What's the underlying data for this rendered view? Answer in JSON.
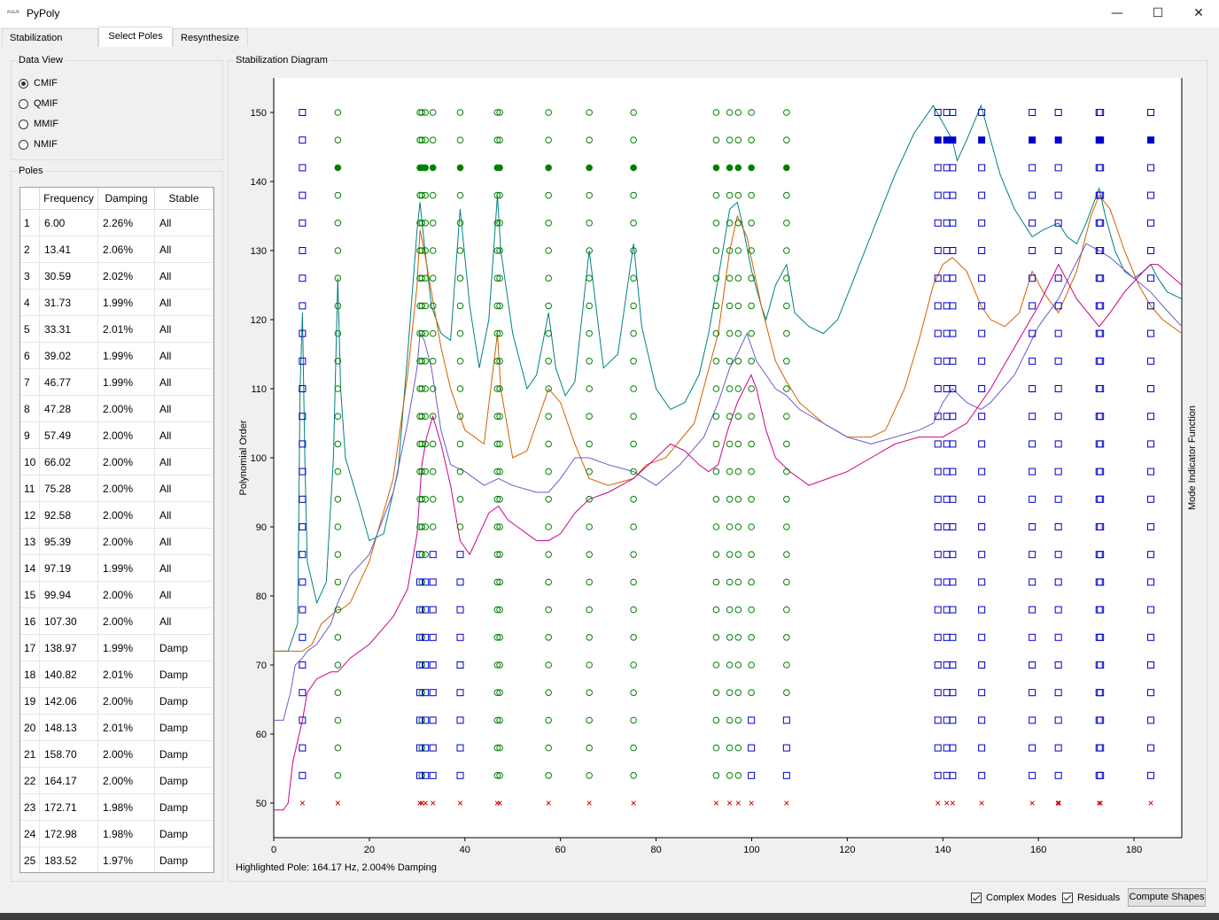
{
  "window": {
    "title": "PyPoly",
    "icon_text": "ʀᴜʟʀ"
  },
  "tabs": [
    {
      "label": "Stabilization Setup"
    },
    {
      "label": "Select Poles"
    },
    {
      "label": "Resynthesize"
    }
  ],
  "data_view": {
    "title": "Data View",
    "options": [
      {
        "label": "CMIF",
        "selected": true
      },
      {
        "label": "QMIF",
        "selected": false
      },
      {
        "label": "MMIF",
        "selected": false
      },
      {
        "label": "NMIF",
        "selected": false
      }
    ]
  },
  "poles": {
    "title": "Poles",
    "headers": [
      "Frequency",
      "Damping",
      "Stable"
    ],
    "rows": [
      [
        "1",
        "6.00",
        "2.26%",
        "All"
      ],
      [
        "2",
        "13.41",
        "2.06%",
        "All"
      ],
      [
        "3",
        "30.59",
        "2.02%",
        "All"
      ],
      [
        "4",
        "31.73",
        "1.99%",
        "All"
      ],
      [
        "5",
        "33.31",
        "2.01%",
        "All"
      ],
      [
        "6",
        "39.02",
        "1.99%",
        "All"
      ],
      [
        "7",
        "46.77",
        "1.99%",
        "All"
      ],
      [
        "8",
        "47.28",
        "2.00%",
        "All"
      ],
      [
        "9",
        "57.49",
        "2.00%",
        "All"
      ],
      [
        "10",
        "66.02",
        "2.00%",
        "All"
      ],
      [
        "11",
        "75.28",
        "2.00%",
        "All"
      ],
      [
        "12",
        "92.58",
        "2.00%",
        "All"
      ],
      [
        "13",
        "95.39",
        "2.00%",
        "All"
      ],
      [
        "14",
        "97.19",
        "1.99%",
        "All"
      ],
      [
        "15",
        "99.94",
        "2.00%",
        "All"
      ],
      [
        "16",
        "107.30",
        "2.00%",
        "All"
      ],
      [
        "17",
        "138.97",
        "1.99%",
        "Damp"
      ],
      [
        "18",
        "140.82",
        "2.01%",
        "Damp"
      ],
      [
        "19",
        "142.06",
        "2.00%",
        "Damp"
      ],
      [
        "20",
        "148.13",
        "2.01%",
        "Damp"
      ],
      [
        "21",
        "158.70",
        "2.00%",
        "Damp"
      ],
      [
        "22",
        "164.17",
        "2.00%",
        "Damp"
      ],
      [
        "23",
        "172.71",
        "1.98%",
        "Damp"
      ],
      [
        "24",
        "172.98",
        "1.98%",
        "Damp"
      ],
      [
        "25",
        "183.52",
        "1.97%",
        "Damp"
      ]
    ]
  },
  "stabilization": {
    "title": "Stabilization Diagram",
    "status": "Highlighted Pole: 164.17 Hz, 2.004% Damping"
  },
  "footer": {
    "complex_modes_label": "Complex Modes",
    "residuals_label": "Residuals",
    "compute_label": "Compute Shapes"
  },
  "chart_data": {
    "type": "scatter",
    "title": "Stabilization Diagram",
    "xlabel": "",
    "ylabel": "Polynomial Order",
    "y2label": "Mode Indicator Function",
    "xlim": [
      0,
      190
    ],
    "ylim": [
      45,
      155
    ],
    "xticks": [
      0,
      20,
      40,
      60,
      80,
      100,
      120,
      140,
      160,
      180
    ],
    "yticks": [
      50,
      60,
      70,
      80,
      90,
      100,
      110,
      120,
      130,
      140,
      150
    ],
    "orders": [
      50,
      54,
      58,
      62,
      66,
      70,
      74,
      78,
      82,
      86,
      90,
      94,
      98,
      102,
      106,
      110,
      114,
      118,
      122,
      126,
      130,
      134,
      138,
      142,
      146,
      150
    ],
    "selected_order": 142,
    "highlighted_frequency": 164.17,
    "colors": {
      "stable": "#008000",
      "freq_only": "#0000cc",
      "unstable": "#cc0000",
      "mif": [
        "#008080",
        "#d06000",
        "#6a5acd",
        "#cc0088"
      ]
    },
    "pole_columns": [
      {
        "f": 6.0,
        "green_from": 999,
        "blue": [
          54,
          58,
          62,
          66,
          70,
          74,
          78,
          82,
          86,
          90,
          94,
          98,
          102,
          106,
          110,
          114,
          118,
          122,
          126,
          130,
          134,
          138,
          142,
          146,
          150
        ]
      },
      {
        "f": 13.41,
        "green_from": 54
      },
      {
        "f": 30.59,
        "green_from": 90
      },
      {
        "f": 31.0,
        "green_from": 54
      },
      {
        "f": 31.73,
        "green_from": 86
      },
      {
        "f": 33.31,
        "green_from": 90
      },
      {
        "f": 39.02,
        "green_from": 90
      },
      {
        "f": 46.77,
        "green_from": 54
      },
      {
        "f": 47.28,
        "green_from": 54
      },
      {
        "f": 57.49,
        "green_from": 54
      },
      {
        "f": 66.02,
        "green_from": 54
      },
      {
        "f": 75.28,
        "green_from": 54
      },
      {
        "f": 92.58,
        "green_from": 54
      },
      {
        "f": 95.39,
        "green_from": 54
      },
      {
        "f": 97.19,
        "green_from": 54
      },
      {
        "f": 99.94,
        "green_from": 66
      },
      {
        "f": 107.3,
        "green_from": 66
      },
      {
        "f": 138.97,
        "green_from": 999
      },
      {
        "f": 140.82,
        "green_from": 999
      },
      {
        "f": 142.06,
        "green_from": 999
      },
      {
        "f": 148.13,
        "green_from": 999
      },
      {
        "f": 158.7,
        "green_from": 999
      },
      {
        "f": 164.17,
        "green_from": 999
      },
      {
        "f": 172.71,
        "green_from": 999
      },
      {
        "f": 172.98,
        "green_from": 999
      },
      {
        "f": 183.52,
        "green_from": 999
      }
    ],
    "series": [
      {
        "name": "",
        "x": [
          0,
          3,
          5,
          5.5,
          6,
          6.5,
          7,
          9,
          11,
          12.5,
          13.4,
          14,
          15,
          18,
          20,
          23,
          26,
          28,
          30,
          30.6,
          31.5,
          33,
          35,
          37,
          39,
          41,
          43,
          45,
          46.8,
          47.5,
          50,
          53,
          55,
          57.5,
          59,
          61,
          63,
          66,
          69,
          72,
          75.3,
          77,
          80,
          83,
          86,
          89,
          91,
          93,
          95.4,
          97,
          98,
          100,
          102,
          103,
          105,
          107.3,
          109,
          112,
          115,
          118,
          122,
          126,
          130,
          134,
          138,
          142,
          143,
          145,
          148,
          150,
          152,
          155,
          158.7,
          161,
          164.2,
          166,
          168,
          170,
          172.7,
          174,
          176,
          178,
          180,
          182,
          183.5,
          185,
          187,
          190
        ],
        "y": [
          72,
          72,
          76,
          110,
          121,
          100,
          85,
          79,
          82,
          100,
          126,
          110,
          100,
          93,
          88,
          89,
          98,
          115,
          133,
          137,
          131,
          122,
          118,
          117,
          136,
          122,
          113,
          120,
          138,
          130,
          118,
          110,
          112,
          121,
          113,
          109,
          111,
          130,
          113,
          115,
          131,
          119,
          110,
          107,
          108,
          112,
          118,
          126,
          136,
          137,
          134,
          127,
          122,
          120,
          125,
          128,
          121,
          119,
          118,
          120,
          127,
          134,
          141,
          147,
          151,
          146,
          143,
          146,
          151,
          146,
          141,
          136,
          132,
          133,
          134,
          132,
          131,
          134,
          139,
          135,
          130,
          127,
          126,
          127,
          128,
          126,
          124,
          123
        ]
      },
      {
        "name": "",
        "x": [
          0,
          3,
          6,
          8,
          10,
          13.4,
          14,
          16,
          20,
          25,
          28,
          30,
          30.6,
          31.5,
          33,
          35,
          37,
          40,
          44,
          46.8,
          47.5,
          50,
          53,
          57.5,
          60,
          63,
          66,
          70,
          75.3,
          78,
          82,
          88,
          93,
          95.4,
          97,
          99,
          102,
          105,
          107.3,
          110,
          115,
          120,
          125,
          128,
          132,
          135,
          138,
          140,
          142,
          145,
          148,
          150,
          153,
          156,
          158.7,
          161,
          164.2,
          168,
          171,
          172.7,
          175,
          178,
          181,
          183.5,
          186,
          190
        ],
        "y": [
          72,
          72,
          72,
          73,
          76,
          78,
          78,
          79,
          85,
          97,
          112,
          125,
          133,
          130,
          124,
          116,
          110,
          104,
          102,
          118,
          110,
          100,
          101,
          110,
          108,
          102,
          97,
          96,
          97,
          99,
          100,
          105,
          118,
          130,
          135,
          132,
          122,
          114,
          111,
          108,
          105,
          103,
          103,
          104,
          110,
          117,
          125,
          128,
          129,
          127,
          122,
          120,
          119,
          121,
          127,
          124,
          121,
          127,
          135,
          138,
          136,
          130,
          125,
          122,
          120,
          118
        ]
      },
      {
        "name": "",
        "x": [
          0,
          2,
          3.5,
          4.5,
          6,
          7,
          9,
          12,
          13.4,
          16,
          20,
          25,
          28,
          30,
          30.6,
          31.5,
          33,
          35,
          37,
          40,
          44,
          47,
          50,
          55,
          57.5,
          60,
          63,
          66,
          70,
          75.3,
          80,
          85,
          90,
          93,
          95.4,
          97,
          99,
          101,
          103,
          105,
          107.3,
          110,
          115,
          120,
          125,
          130,
          135,
          138,
          140,
          142,
          145,
          148,
          150,
          155,
          160,
          164.2,
          167,
          170,
          172.7,
          175,
          180,
          183.5,
          186,
          190
        ],
        "y": [
          62,
          62,
          66,
          70,
          71,
          72,
          73,
          76,
          79,
          83,
          86,
          95,
          105,
          113,
          118,
          117,
          113,
          104,
          99,
          98,
          96,
          97,
          96,
          95,
          95,
          97,
          100,
          100,
          99,
          98,
          96,
          99,
          103,
          108,
          113,
          115,
          118,
          114,
          112,
          110,
          109,
          107,
          105,
          103,
          102,
          103,
          104,
          105,
          108,
          110,
          108,
          107,
          108,
          112,
          119,
          123,
          127,
          131,
          130,
          129,
          126,
          124,
          122,
          119
        ]
      },
      {
        "name": "",
        "x": [
          0,
          2,
          3,
          4,
          6,
          7,
          9,
          12,
          13.4,
          16,
          20,
          25,
          28,
          30,
          31,
          32,
          33.3,
          35,
          37,
          39,
          41,
          43,
          45,
          47,
          49,
          51,
          53,
          55,
          57.5,
          60,
          63,
          66,
          70,
          75.3,
          80,
          83,
          86,
          89,
          91,
          93,
          95,
          97,
          99.9,
          101,
          103,
          105,
          108,
          112,
          116,
          120,
          125,
          130,
          135,
          140,
          145,
          150,
          155,
          160,
          164.2,
          168,
          172.7,
          175,
          178,
          182,
          183.5,
          185,
          190
        ],
        "y": [
          49,
          49,
          50,
          56,
          62,
          66,
          68,
          69,
          69,
          71,
          73,
          77,
          81,
          89,
          99,
          103,
          106,
          102,
          96,
          88,
          86,
          89,
          92,
          93,
          91,
          90,
          89,
          88,
          88,
          89,
          92,
          94,
          95,
          97,
          100,
          102,
          101,
          99,
          98,
          99,
          104,
          108,
          112,
          110,
          104,
          100,
          98,
          96,
          97,
          98,
          100,
          102,
          103,
          103,
          105,
          110,
          116,
          122,
          128,
          123,
          119,
          121,
          124,
          127,
          128,
          128,
          125
        ]
      }
    ]
  }
}
